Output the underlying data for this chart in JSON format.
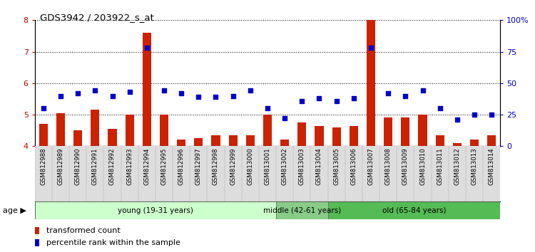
{
  "title": "GDS3942 / 203922_s_at",
  "samples": [
    "GSM812988",
    "GSM812989",
    "GSM812990",
    "GSM812991",
    "GSM812992",
    "GSM812993",
    "GSM812994",
    "GSM812995",
    "GSM812996",
    "GSM812997",
    "GSM812998",
    "GSM812999",
    "GSM813000",
    "GSM813001",
    "GSM813002",
    "GSM813003",
    "GSM813004",
    "GSM813005",
    "GSM813006",
    "GSM813007",
    "GSM813008",
    "GSM813009",
    "GSM813010",
    "GSM813011",
    "GSM813012",
    "GSM813013",
    "GSM813014"
  ],
  "bar_values": [
    4.7,
    5.05,
    4.5,
    5.15,
    4.55,
    5.0,
    7.6,
    5.0,
    4.2,
    4.25,
    4.35,
    4.35,
    4.35,
    5.0,
    4.2,
    4.75,
    4.65,
    4.6,
    4.65,
    8.0,
    4.9,
    4.9,
    5.0,
    4.35,
    4.1,
    4.2,
    4.35
  ],
  "percentile_values": [
    30,
    40,
    42,
    44,
    40,
    43,
    78,
    44,
    42,
    39,
    39,
    40,
    44,
    30,
    22,
    36,
    38,
    36,
    38,
    78,
    42,
    40,
    44,
    30,
    21,
    25,
    25
  ],
  "bar_color": "#cc2200",
  "dot_color": "#0000cc",
  "ylim_left": [
    4,
    8
  ],
  "ylim_right": [
    0,
    100
  ],
  "yticks_left": [
    4,
    5,
    6,
    7,
    8
  ],
  "ytick_labels_right": [
    "0",
    "25",
    "50",
    "75",
    "100%"
  ],
  "groups": [
    {
      "label": "young (19-31 years)",
      "start": 0,
      "end": 14,
      "color": "#ccffcc"
    },
    {
      "label": "middle (42-61 years)",
      "start": 14,
      "end": 17,
      "color": "#88cc88"
    },
    {
      "label": "old (65-84 years)",
      "start": 17,
      "end": 27,
      "color": "#55bb55"
    }
  ],
  "legend": [
    {
      "label": "transformed count",
      "color": "#cc2200"
    },
    {
      "label": "percentile rank within the sample",
      "color": "#0000cc"
    }
  ],
  "left_axis_color": "#cc0000",
  "right_axis_color": "#0000cc"
}
